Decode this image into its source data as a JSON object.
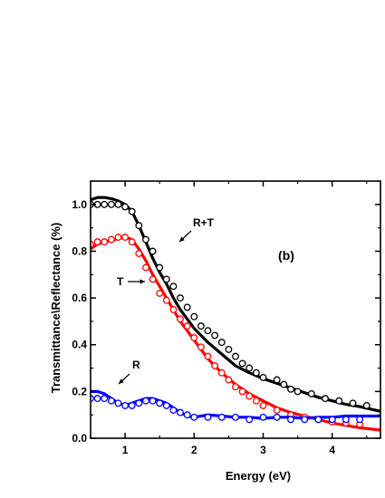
{
  "chart_data": {
    "type": "line",
    "xlabel": "Energy (eV)",
    "ylabel": "Transmittance\\Reflectance (%)",
    "xlim": [
      0.5,
      4.7
    ],
    "ylim": [
      0.0,
      1.1
    ],
    "x_ticks": [
      "1",
      "2",
      "3",
      "4"
    ],
    "y_ticks": [
      "0.0",
      "0.2",
      "0.4",
      "0.6",
      "0.8",
      "1.0"
    ],
    "panel_label": "(b)",
    "grid": false,
    "annotations": [
      "R+T",
      "T",
      "R"
    ],
    "series": [
      {
        "name": "R+T",
        "color": "#000000",
        "fit": {
          "x": [
            0.5,
            0.6,
            0.7,
            0.8,
            0.9,
            1.0,
            1.1,
            1.2,
            1.3,
            1.4,
            1.5,
            1.6,
            1.7,
            1.8,
            1.9,
            2.0,
            2.2,
            2.4,
            2.6,
            2.8,
            3.0,
            3.2,
            3.4,
            3.6,
            3.8,
            4.0,
            4.2,
            4.4,
            4.7
          ],
          "y": [
            1.02,
            1.03,
            1.03,
            1.025,
            1.015,
            1.0,
            0.97,
            0.91,
            0.84,
            0.77,
            0.71,
            0.66,
            0.6,
            0.55,
            0.51,
            0.47,
            0.41,
            0.36,
            0.31,
            0.28,
            0.255,
            0.235,
            0.215,
            0.195,
            0.175,
            0.16,
            0.145,
            0.135,
            0.115
          ]
        },
        "measured": {
          "x": [
            0.5,
            0.6,
            0.7,
            0.8,
            0.9,
            1.0,
            1.1,
            1.2,
            1.3,
            1.4,
            1.5,
            1.6,
            1.7,
            1.8,
            1.9,
            2.0,
            2.1,
            2.2,
            2.3,
            2.4,
            2.5,
            2.6,
            2.7,
            2.8,
            2.9,
            3.0,
            3.2,
            3.3,
            3.4,
            3.5,
            3.7,
            3.9,
            4.1,
            4.3,
            4.5
          ],
          "y": [
            1.0,
            1.0,
            1.0,
            1.0,
            1.0,
            0.99,
            0.97,
            0.91,
            0.85,
            0.8,
            0.73,
            0.68,
            0.65,
            0.6,
            0.56,
            0.52,
            0.48,
            0.46,
            0.44,
            0.41,
            0.38,
            0.35,
            0.32,
            0.3,
            0.28,
            0.26,
            0.25,
            0.23,
            0.21,
            0.2,
            0.19,
            0.17,
            0.16,
            0.15,
            0.14
          ]
        }
      },
      {
        "name": "T",
        "color": "#ff0000",
        "fit": {
          "x": [
            0.5,
            0.6,
            0.7,
            0.8,
            0.9,
            1.0,
            1.1,
            1.2,
            1.3,
            1.4,
            1.5,
            1.6,
            1.7,
            1.8,
            1.9,
            2.0,
            2.2,
            2.4,
            2.6,
            2.8,
            3.0,
            3.2,
            3.4,
            3.6,
            3.8,
            4.0,
            4.2,
            4.4,
            4.7
          ],
          "y": [
            0.81,
            0.83,
            0.84,
            0.845,
            0.855,
            0.86,
            0.85,
            0.81,
            0.76,
            0.7,
            0.65,
            0.6,
            0.55,
            0.5,
            0.46,
            0.42,
            0.34,
            0.28,
            0.23,
            0.19,
            0.16,
            0.13,
            0.11,
            0.095,
            0.08,
            0.065,
            0.055,
            0.045,
            0.035
          ]
        },
        "measured": {
          "x": [
            0.5,
            0.6,
            0.7,
            0.8,
            0.9,
            1.0,
            1.1,
            1.2,
            1.3,
            1.4,
            1.5,
            1.6,
            1.7,
            1.8,
            1.9,
            2.0,
            2.1,
            2.2,
            2.3,
            2.4,
            2.5,
            2.6,
            2.7,
            2.8,
            2.9,
            3.0,
            3.2,
            3.4,
            3.6,
            3.8,
            4.0,
            4.2,
            4.4
          ],
          "y": [
            0.83,
            0.84,
            0.84,
            0.85,
            0.86,
            0.86,
            0.84,
            0.79,
            0.73,
            0.68,
            0.62,
            0.59,
            0.55,
            0.51,
            0.48,
            0.43,
            0.39,
            0.35,
            0.31,
            0.28,
            0.25,
            0.22,
            0.2,
            0.18,
            0.16,
            0.14,
            0.12,
            0.1,
            0.09,
            0.08,
            0.07,
            0.065,
            0.06
          ]
        }
      },
      {
        "name": "R",
        "color": "#0000ff",
        "fit": {
          "x": [
            0.5,
            0.6,
            0.7,
            0.8,
            0.9,
            1.0,
            1.1,
            1.2,
            1.3,
            1.4,
            1.5,
            1.6,
            1.7,
            1.8,
            1.9,
            2.0,
            2.2,
            2.4,
            2.6,
            2.8,
            3.0,
            3.2,
            3.4,
            3.6,
            3.8,
            4.0,
            4.2,
            4.4,
            4.7
          ],
          "y": [
            0.2,
            0.2,
            0.19,
            0.17,
            0.15,
            0.14,
            0.15,
            0.16,
            0.17,
            0.17,
            0.16,
            0.15,
            0.13,
            0.11,
            0.095,
            0.09,
            0.1,
            0.095,
            0.09,
            0.09,
            0.085,
            0.09,
            0.09,
            0.085,
            0.09,
            0.09,
            0.095,
            0.095,
            0.095
          ]
        },
        "measured": {
          "x": [
            0.5,
            0.6,
            0.7,
            0.8,
            0.9,
            1.0,
            1.1,
            1.2,
            1.3,
            1.4,
            1.5,
            1.6,
            1.7,
            1.8,
            1.9,
            2.0,
            2.2,
            2.4,
            2.6,
            2.8,
            3.0,
            3.2,
            3.4,
            3.6,
            3.8,
            4.0,
            4.2,
            4.4
          ],
          "y": [
            0.17,
            0.17,
            0.17,
            0.16,
            0.15,
            0.14,
            0.14,
            0.15,
            0.16,
            0.16,
            0.15,
            0.14,
            0.12,
            0.11,
            0.1,
            0.09,
            0.09,
            0.09,
            0.09,
            0.08,
            0.09,
            0.09,
            0.08,
            0.08,
            0.08,
            0.08,
            0.08,
            0.08
          ]
        }
      }
    ]
  }
}
